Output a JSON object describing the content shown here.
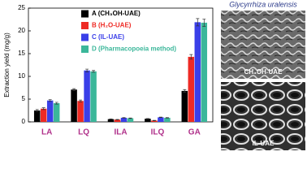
{
  "chart_data": {
    "type": "bar",
    "y_label": "Extraction yield (mg/g)",
    "categories": [
      "LA",
      "LQ",
      "ILA",
      "ILQ",
      "GA"
    ],
    "series": [
      {
        "name": "A (CH₃OH-UAE)",
        "color": "#000000",
        "values": [
          2.5,
          7.1,
          0.6,
          0.7,
          6.8
        ],
        "errors": [
          0.2,
          0.2,
          0.05,
          0.05,
          0.3
        ]
      },
      {
        "name": "B (H₂O-UAE)",
        "color": "#ee2a24",
        "values": [
          2.9,
          4.6,
          0.5,
          0.3,
          14.3
        ],
        "errors": [
          0.2,
          0.2,
          0.05,
          0.05,
          0.5
        ]
      },
      {
        "name": "C (IL-UAE)",
        "color": "#3a3fe8",
        "values": [
          4.7,
          11.3,
          0.9,
          1.0,
          21.9
        ],
        "errors": [
          0.2,
          0.3,
          0.05,
          0.05,
          0.8
        ]
      },
      {
        "name": "D (Pharmacopoeia method)",
        "color": "#3bb79a",
        "values": [
          4.1,
          11.1,
          0.8,
          0.9,
          21.8
        ],
        "errors": [
          0.2,
          0.2,
          0.05,
          0.05,
          0.8
        ]
      }
    ],
    "ylim": [
      0,
      25
    ],
    "yticks": [
      0,
      5,
      10,
      15,
      20,
      25
    ],
    "grid": false
  },
  "images": {
    "title": "Glycyrrhiza uralensis",
    "captions": [
      "CH₃OH-UAE",
      "IL-UAE"
    ]
  }
}
